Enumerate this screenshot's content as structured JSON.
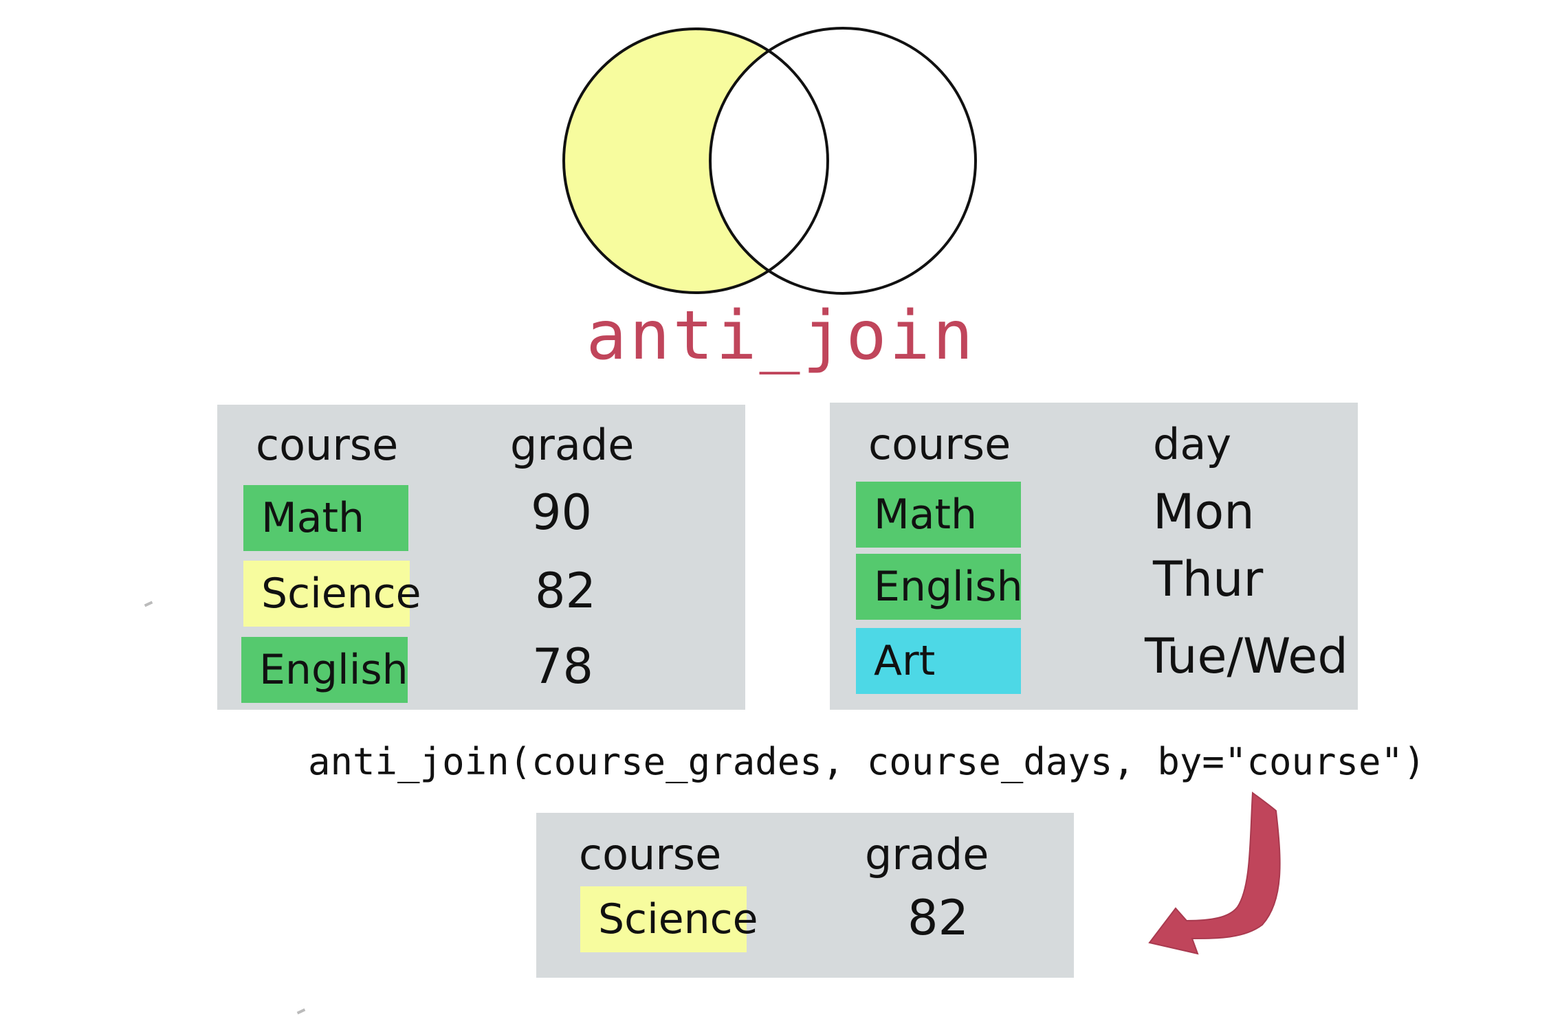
{
  "colors": {
    "venn_fill": "#f7fc9e",
    "title": "#c0455b",
    "panel": "#d6dadc",
    "green": "#55c96e",
    "yellow": "#f7fc9e",
    "cyan": "#4dd8e6",
    "arrow": "#c0455b"
  },
  "title": "anti_join",
  "left_table": {
    "headers": [
      "course",
      "grade"
    ],
    "rows": [
      {
        "course": "Math",
        "grade": "90",
        "color": "green"
      },
      {
        "course": "Science",
        "grade": "82",
        "color": "yellow"
      },
      {
        "course": "English",
        "grade": "78",
        "color": "green"
      }
    ]
  },
  "right_table": {
    "headers": [
      "course",
      "day"
    ],
    "rows": [
      {
        "course": "Math",
        "day": "Mon",
        "color": "green"
      },
      {
        "course": "English",
        "day": "Thur",
        "color": "green"
      },
      {
        "course": "Art",
        "day": "Tue/Wed",
        "color": "cyan"
      }
    ]
  },
  "code": "anti_join(course_grades, course_days, by=\"course\")",
  "result_table": {
    "headers": [
      "course",
      "grade"
    ],
    "rows": [
      {
        "course": "Science",
        "grade": "82",
        "color": "yellow"
      }
    ]
  },
  "icons": [
    "venn-diagram-icon",
    "curved-arrow-icon"
  ]
}
